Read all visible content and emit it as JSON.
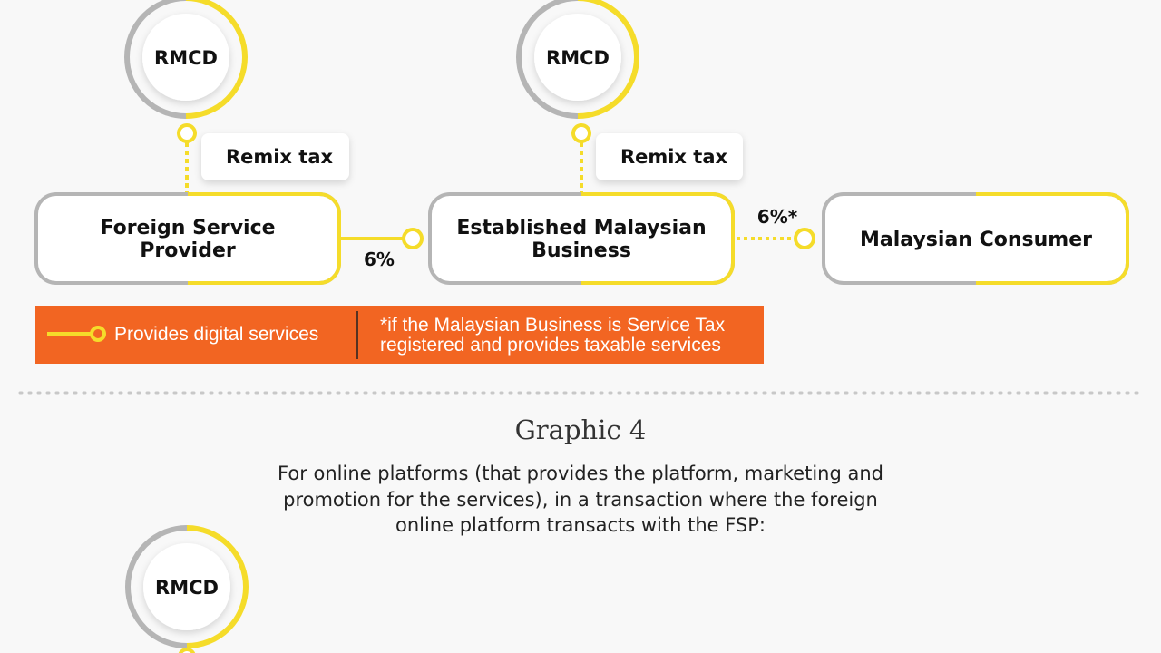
{
  "colors": {
    "yellow": "#f5dc2a",
    "gray": "#b5b5b5",
    "orange": "#f26522",
    "background": "#f8f8f8"
  },
  "graphic3": {
    "rmcd_left": "RMCD",
    "rmcd_middle": "RMCD",
    "remix_left": "Remix tax",
    "remix_middle": "Remix tax",
    "foreign_service_provider": [
      "Foreign Service",
      "Provider"
    ],
    "established_business": [
      "Established Malaysian",
      "Business"
    ],
    "malaysian_consumer": "Malaysian Consumer",
    "rate_fsp_to_business": "6%",
    "rate_business_to_consumer": "6%*"
  },
  "legend": {
    "provides_digital_services": "Provides digital services",
    "footnote": [
      "*if the Malaysian Business is Service Tax",
      "registered and provides taxable services"
    ]
  },
  "graphic4": {
    "title": "Graphic 4",
    "description": [
      "For online platforms (that provides the platform, marketing and",
      "promotion for the services), in a transaction where the foreign",
      "online platform transacts with the FSP:"
    ],
    "rmcd": "RMCD"
  }
}
